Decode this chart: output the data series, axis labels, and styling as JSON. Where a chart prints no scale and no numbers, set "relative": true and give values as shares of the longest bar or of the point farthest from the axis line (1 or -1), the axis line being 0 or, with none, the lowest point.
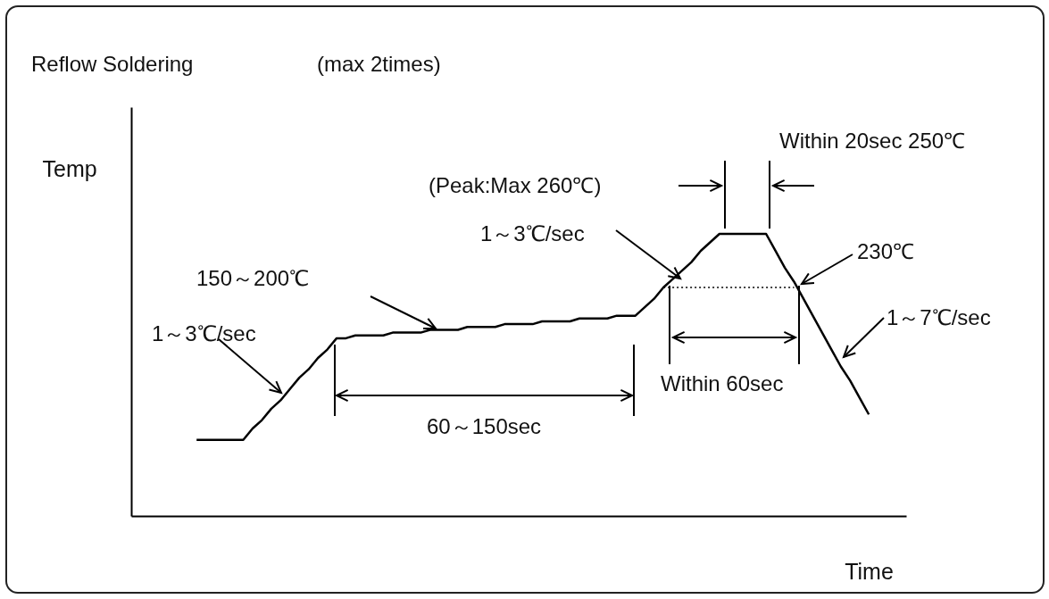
{
  "chart_data": {
    "type": "line",
    "title": "Reflow Soldering",
    "subtitle": "(max 2times)",
    "xlabel": "Time",
    "ylabel": "Temp",
    "relative": true,
    "categories": [
      null,
      null,
      null,
      null,
      null,
      null,
      null,
      null,
      null,
      null,
      null,
      null,
      null,
      null,
      null,
      null,
      null,
      null,
      null,
      null,
      null,
      null,
      null,
      null,
      null,
      null,
      null,
      null,
      null,
      null,
      null,
      null,
      null,
      null,
      null,
      null,
      null,
      null,
      null,
      null,
      null,
      null,
      null,
      null,
      null,
      null,
      null,
      null,
      null,
      null,
      null,
      null,
      null,
      null,
      null,
      null,
      null,
      null,
      null,
      null,
      null,
      null,
      null,
      null,
      null,
      null,
      null,
      null,
      null,
      null,
      null,
      null,
      null,
      null,
      null,
      null,
      null,
      null,
      null,
      null,
      null,
      null,
      null,
      null
    ],
    "series": [
      {
        "color": "#000000",
        "line_style": "solid",
        "values": [
          null,
          null,
          null,
          null,
          null,
          null,
          null,
          0.27,
          0.27,
          0.27,
          0.27,
          0.27,
          0.27,
          0.31,
          0.34,
          0.38,
          0.41,
          0.45,
          0.49,
          0.52,
          0.56,
          0.59,
          0.63,
          0.63,
          0.64,
          0.64,
          0.64,
          0.64,
          0.65,
          0.65,
          0.65,
          0.65,
          0.66,
          0.66,
          0.66,
          0.66,
          0.67,
          0.67,
          0.67,
          0.67,
          0.68,
          0.68,
          0.68,
          0.68,
          0.69,
          0.69,
          0.69,
          0.69,
          0.7,
          0.7,
          0.7,
          0.7,
          0.71,
          0.71,
          0.71,
          0.74,
          0.77,
          0.81,
          0.84,
          0.87,
          0.9,
          0.94,
          0.97,
          1.0,
          1.0,
          1.0,
          1.0,
          1.0,
          1.0,
          0.94,
          0.88,
          0.83,
          0.77,
          0.71,
          0.65,
          0.59,
          0.53,
          0.48,
          0.42,
          0.36,
          null,
          null,
          null,
          null
        ]
      },
      {
        "color": "#000000",
        "line_style": "dotted",
        "values": [
          null,
          null,
          null,
          null,
          null,
          null,
          null,
          null,
          null,
          null,
          null,
          null,
          null,
          null,
          null,
          null,
          null,
          null,
          null,
          null,
          null,
          null,
          null,
          null,
          null,
          null,
          null,
          null,
          null,
          null,
          null,
          null,
          null,
          null,
          null,
          null,
          null,
          null,
          null,
          null,
          null,
          null,
          null,
          null,
          null,
          null,
          null,
          null,
          null,
          null,
          null,
          null,
          null,
          null,
          null,
          null,
          null,
          0.81,
          0.81,
          0.81,
          0.81,
          0.81,
          0.81,
          0.81,
          0.81,
          0.81,
          0.81,
          0.81,
          0.81,
          0.81,
          0.81,
          0.81,
          null,
          null,
          null,
          null,
          null,
          null,
          null,
          null,
          null,
          null,
          null,
          null
        ]
      }
    ],
    "annotations": [
      "150～200℃",
      "1～3℃/sec",
      "60～150sec",
      "(Peak:Max 260℃)",
      "1～3℃/sec",
      "Within 20sec 250℃",
      "230℃",
      "1～7℃/sec",
      "Within 60sec"
    ]
  }
}
